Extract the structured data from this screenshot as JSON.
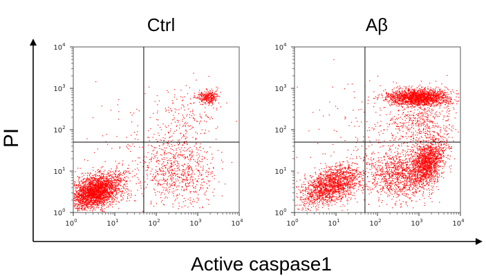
{
  "chart_data": {
    "type": "scatter",
    "xlabel": "Active caspase1",
    "ylabel": "PI",
    "xscale": "log",
    "yscale": "log",
    "xlim": [
      1,
      10000
    ],
    "ylim": [
      1,
      10000
    ],
    "tick_exponents": [
      "0",
      "1",
      "2",
      "3",
      "4"
    ],
    "tick_base": "10",
    "gate": {
      "x": 50,
      "y": 50
    },
    "point_color": "#ff0000",
    "panels": [
      {
        "title": "Ctrl",
        "populations": [
          {
            "n": 2600,
            "cx": 0.55,
            "cy": 0.5,
            "sx": 0.32,
            "sy": 0.22,
            "rho": 0.45
          },
          {
            "n": 700,
            "cx": 2.55,
            "cy": 1.0,
            "sx": 0.45,
            "sy": 0.4,
            "rho": 0.0
          },
          {
            "n": 280,
            "cx": 3.25,
            "cy": 2.78,
            "sx": 0.12,
            "sy": 0.08,
            "rho": 0.0
          },
          {
            "n": 180,
            "cx": 2.8,
            "cy": 2.4,
            "sx": 0.45,
            "sy": 0.4,
            "rho": 0.0
          },
          {
            "n": 130,
            "cx": 1.6,
            "cy": 1.4,
            "sx": 0.7,
            "sy": 0.6,
            "rho": 0.0
          }
        ]
      },
      {
        "title": "Aβ",
        "populations": [
          {
            "n": 1700,
            "cx": 0.9,
            "cy": 0.65,
            "sx": 0.36,
            "sy": 0.25,
            "rho": 0.5
          },
          {
            "n": 1500,
            "cx": 3.2,
            "cy": 1.2,
            "sx": 0.22,
            "sy": 0.3,
            "rho": 0.4
          },
          {
            "n": 900,
            "cx": 2.5,
            "cy": 0.9,
            "sx": 0.35,
            "sy": 0.3,
            "rho": 0.0
          },
          {
            "n": 1700,
            "cx": 3.0,
            "cy": 2.78,
            "sx": 0.38,
            "sy": 0.1,
            "rho": 0.0
          },
          {
            "n": 500,
            "cx": 3.05,
            "cy": 2.2,
            "sx": 0.4,
            "sy": 0.35,
            "rho": 0.0
          },
          {
            "n": 200,
            "cx": 1.8,
            "cy": 1.8,
            "sx": 0.8,
            "sy": 0.7,
            "rho": 0.0
          }
        ]
      }
    ]
  }
}
